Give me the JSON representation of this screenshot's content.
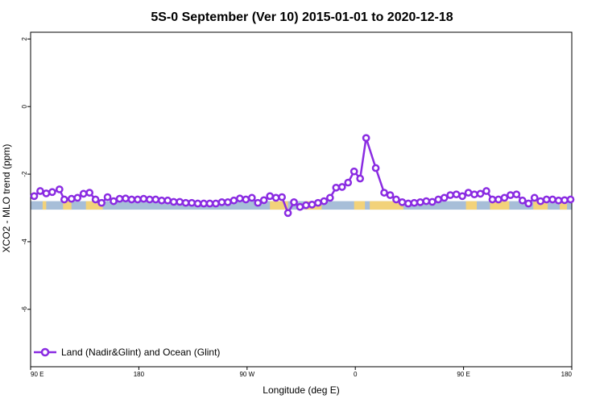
{
  "chart_data": {
    "type": "line",
    "title": "5S-0 September (Ver 10)   2015-01-01 to 2020-12-18",
    "xlabel": "Longitude (deg E)",
    "ylabel": "XCO2 - MLO trend (ppm)",
    "x_tick_labels": [
      "90 E",
      "180",
      "90 W",
      "0",
      "90 E",
      "180"
    ],
    "x_tick_values": [
      90,
      180,
      270,
      360,
      450,
      540
    ],
    "xlim": [
      90,
      540
    ],
    "y_tick_labels": [
      "2",
      "0",
      "-2",
      "-4",
      "-6"
    ],
    "y_tick_values": [
      2,
      0,
      -2,
      -4,
      -6
    ],
    "ylim": [
      -7.7,
      2.2
    ],
    "legend_position": "bottom-left",
    "colors": {
      "series": "#8a2be2",
      "ocean": "#a7bed8",
      "land": "#f2d27a"
    },
    "band": {
      "y_top": -2.8,
      "y_bottom": -3.05
    },
    "land_ranges": [
      [
        100,
        103
      ],
      [
        117,
        124
      ],
      [
        136,
        150
      ],
      [
        289,
        304
      ],
      [
        318,
        332
      ],
      [
        359,
        368
      ],
      [
        372,
        400
      ],
      [
        452,
        461
      ],
      [
        472,
        488
      ],
      [
        508,
        520
      ],
      [
        530,
        536
      ]
    ],
    "series": [
      {
        "name": "Land (Nadir&Glint) and Ocean (Glint)",
        "x": [
          93,
          98,
          103,
          108,
          114,
          118,
          124,
          129,
          134,
          139,
          144,
          149,
          154,
          159,
          164,
          169,
          174,
          179,
          184,
          189,
          194,
          199,
          204,
          209,
          214,
          219,
          224,
          229,
          234,
          239,
          244,
          249,
          254,
          259,
          264,
          269,
          274,
          279,
          284,
          289,
          294,
          299,
          304,
          309,
          314,
          319,
          324,
          329,
          334,
          339,
          344,
          349,
          354,
          359,
          364,
          369,
          377,
          384,
          389,
          394,
          399,
          404,
          409,
          414,
          419,
          424,
          429,
          434,
          439,
          444,
          449,
          454,
          459,
          464,
          469,
          474,
          479,
          484,
          489,
          494,
          499,
          504,
          509,
          514,
          519,
          524,
          529,
          534,
          539
        ],
        "y": [
          -2.65,
          -2.5,
          -2.57,
          -2.53,
          -2.45,
          -2.75,
          -2.73,
          -2.7,
          -2.58,
          -2.55,
          -2.75,
          -2.85,
          -2.68,
          -2.8,
          -2.73,
          -2.72,
          -2.75,
          -2.75,
          -2.73,
          -2.75,
          -2.75,
          -2.78,
          -2.78,
          -2.82,
          -2.82,
          -2.85,
          -2.85,
          -2.87,
          -2.87,
          -2.87,
          -2.87,
          -2.83,
          -2.83,
          -2.78,
          -2.72,
          -2.75,
          -2.7,
          -2.85,
          -2.77,
          -2.65,
          -2.7,
          -2.68,
          -3.15,
          -2.83,
          -2.97,
          -2.92,
          -2.9,
          -2.85,
          -2.8,
          -2.7,
          -2.4,
          -2.38,
          -2.25,
          -1.92,
          -2.13,
          -0.93,
          -1.82,
          -2.55,
          -2.62,
          -2.75,
          -2.83,
          -2.87,
          -2.85,
          -2.83,
          -2.8,
          -2.82,
          -2.75,
          -2.7,
          -2.62,
          -2.6,
          -2.65,
          -2.55,
          -2.6,
          -2.58,
          -2.5,
          -2.75,
          -2.75,
          -2.7,
          -2.62,
          -2.6,
          -2.78,
          -2.87,
          -2.7,
          -2.8,
          -2.75,
          -2.75,
          -2.78,
          -2.77,
          -2.75
        ]
      }
    ]
  }
}
